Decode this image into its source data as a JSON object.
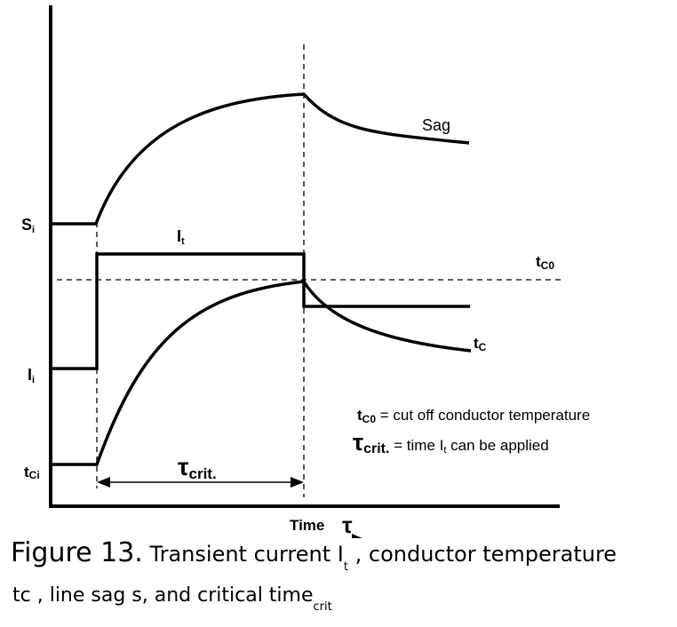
{
  "diagram": {
    "labels": {
      "si": "S",
      "si_sub": "i",
      "it": "I",
      "it_sub": "t",
      "ii": "I",
      "ii_sub": "i",
      "tci": "t",
      "tci_sub": "Ci",
      "sag": "Sag",
      "tc0": "t",
      "tc0_sub": "C0",
      "tc": "t",
      "tc_sub": "C",
      "tau_crit": "τ",
      "tau_crit_sub": "crit.",
      "time": "Time",
      "time_symbol": "τ"
    },
    "legend": {
      "line1_sym": "t",
      "line1_sub": "C0",
      "line1_text": " = cut off conductor temperature",
      "line2_sym": "τ",
      "line2_sub": "crit.",
      "line2_text_a": " = time I",
      "line2_text_sub": "t",
      "line2_text_b": " can be applied"
    }
  },
  "caption": {
    "figure": "Figure 13.",
    "part1": " Transient current I",
    "part1_sub": "t",
    "part2": " , conductor temperature",
    "part3": "tc , line sag s, and critical time",
    "part3_sub": "crit"
  }
}
